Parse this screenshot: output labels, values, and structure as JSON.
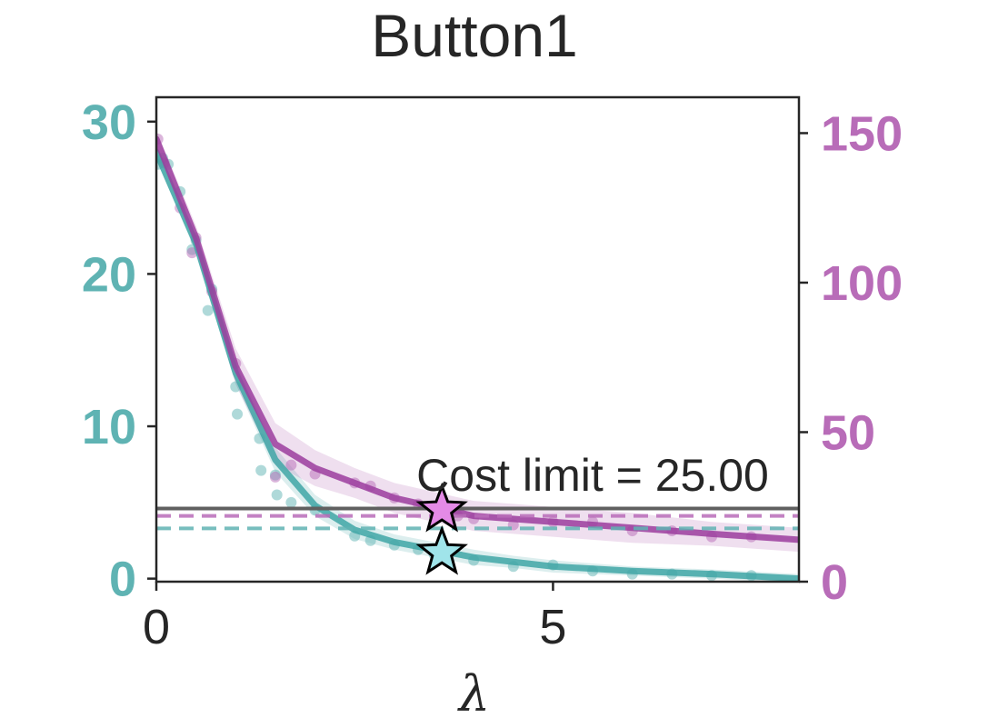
{
  "chart_data": {
    "type": "line",
    "title": "Button1",
    "xlabel": "λ",
    "ylabel_left": "",
    "ylabel_right": "",
    "xlim": [
      0,
      8.1
    ],
    "ylim_left": [
      -0.2,
      31.6
    ],
    "ylim_right": [
      0,
      162
    ],
    "x_ticks": [
      "0",
      "5"
    ],
    "x_tick_values": [
      0,
      5
    ],
    "y_left_ticks": [
      "0",
      "10",
      "20",
      "30"
    ],
    "y_left_tick_values": [
      0,
      10,
      20,
      30
    ],
    "y_right_ticks": [
      "0",
      "50",
      "100",
      "150"
    ],
    "y_right_tick_values": [
      0,
      50,
      100,
      150
    ],
    "grid": false,
    "colors": {
      "teal": "#5fb3b3",
      "teal_line": "#3fa6a6",
      "purple": "#b86cb8",
      "purple_line": "#9b3d9e",
      "cost_limit": "#606060",
      "teal_star_fill": "#a0e4ea",
      "purple_star_fill": "#e48ae6"
    },
    "series": [
      {
        "axis": "left",
        "color": "teal",
        "x": [
          0,
          0.5,
          1.0,
          1.5,
          2.0,
          2.5,
          3.0,
          3.5,
          4.0,
          4.5,
          5.0,
          6.0,
          7.0,
          8.1
        ],
        "y": [
          28.0,
          22.0,
          13.5,
          7.8,
          4.8,
          3.2,
          2.4,
          1.9,
          1.4,
          1.1,
          0.8,
          0.5,
          0.3,
          0.0
        ],
        "band": [
          0.5,
          0.6,
          0.7,
          0.8,
          0.7,
          0.6,
          0.5,
          0.5,
          0.5,
          0.4,
          0.4,
          0.3,
          0.3,
          0.3
        ],
        "points_x": [
          0.02,
          0.08,
          0.15,
          0.3,
          0.45,
          0.5,
          0.65,
          0.7,
          1.0,
          1.02,
          1.3,
          1.32,
          1.5,
          1.52,
          1.7,
          2.0,
          2.5,
          2.7,
          3.0,
          3.3,
          3.5,
          4.0,
          4.5,
          5.0,
          5.5,
          6.0,
          6.5,
          7.0,
          7.5
        ],
        "points_y": [
          27.2,
          27.6,
          27.2,
          25.4,
          21.6,
          22.2,
          17.6,
          19.0,
          12.6,
          10.8,
          9.2,
          7.1,
          6.8,
          5.5,
          5.0,
          4.5,
          2.8,
          2.5,
          2.2,
          1.9,
          1.6,
          1.2,
          0.8,
          0.9,
          0.5,
          0.3,
          0.3,
          0.2,
          0.2
        ]
      },
      {
        "axis": "right",
        "color": "purple",
        "x": [
          0,
          0.5,
          1.0,
          1.5,
          2.0,
          2.5,
          3.0,
          3.5,
          4.0,
          5.0,
          6.0,
          7.0,
          8.1
        ],
        "y": [
          148,
          115,
          72,
          46,
          38,
          33,
          28,
          25,
          22,
          20,
          18,
          16,
          14
        ],
        "band": [
          3,
          4,
          6,
          7,
          6,
          5,
          5,
          5,
          5,
          5,
          5,
          4,
          4
        ],
        "points_x": [
          0.02,
          0.1,
          0.3,
          0.45,
          0.5,
          0.7,
          1.0,
          1.5,
          1.7,
          2.0,
          2.5,
          2.7,
          3.0,
          3.3,
          3.5,
          3.8,
          4.0,
          4.5,
          5.0,
          5.5,
          6.0,
          6.5,
          7.0,
          7.5
        ],
        "points_y": [
          148,
          140,
          125,
          110,
          115,
          97,
          73,
          35,
          39,
          36,
          33,
          32,
          28,
          26,
          24,
          22,
          21,
          19,
          20,
          20,
          17,
          17,
          15,
          15
        ]
      }
    ],
    "hlines": [
      {
        "axis": "left",
        "y": 4.6,
        "color": "cost_limit",
        "style": "solid"
      },
      {
        "axis": "right",
        "y": 22,
        "color": "purple",
        "style": "dashed"
      },
      {
        "axis": "left",
        "y": 3.3,
        "color": "teal",
        "style": "dashed"
      }
    ],
    "markers": [
      {
        "axis": "right",
        "x": 3.6,
        "y": 24,
        "color": "purple_star_fill"
      },
      {
        "axis": "left",
        "x": 3.6,
        "y": 1.7,
        "color": "teal_star_fill"
      }
    ],
    "annotation": "Cost limit = 25.00"
  }
}
